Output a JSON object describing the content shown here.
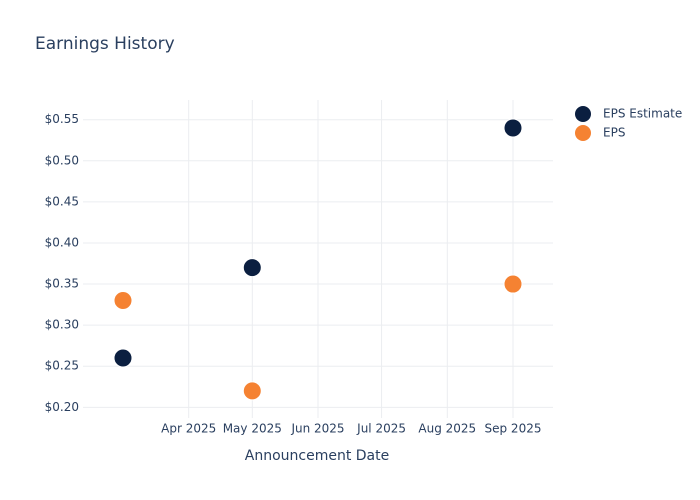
{
  "chart_data": {
    "type": "scatter",
    "title": "Earnings History",
    "x_label": "Announcement Date",
    "x": [
      "2025-03",
      "2025-05",
      "2025-09"
    ],
    "series": [
      {
        "name": "EPS Estimate",
        "color": "#0b1f40",
        "values": [
          0.26,
          0.37,
          0.54
        ]
      },
      {
        "name": "EPS",
        "color": "#f58232",
        "values": [
          0.33,
          0.22,
          0.35
        ]
      }
    ],
    "xlim": [
      "2025-03",
      "2025-09"
    ],
    "xticks": [
      {
        "value": "2025-04",
        "label": "Apr 2025"
      },
      {
        "value": "2025-05",
        "label": "May 2025"
      },
      {
        "value": "2025-06",
        "label": "Jun 2025"
      },
      {
        "value": "2025-07",
        "label": "Jul 2025"
      },
      {
        "value": "2025-08",
        "label": "Aug 2025"
      },
      {
        "value": "2025-09",
        "label": "Sep 2025"
      }
    ],
    "ylim": [
      0.187,
      0.574
    ],
    "yticks": [
      {
        "value": 0.2,
        "label": "$0.20"
      },
      {
        "value": 0.25,
        "label": "$0.25"
      },
      {
        "value": 0.3,
        "label": "$0.30"
      },
      {
        "value": 0.35,
        "label": "$0.35"
      },
      {
        "value": 0.4,
        "label": "$0.40"
      },
      {
        "value": 0.45,
        "label": "$0.45"
      },
      {
        "value": 0.5,
        "label": "$0.50"
      },
      {
        "value": 0.55,
        "label": "$0.55"
      }
    ],
    "grid": true,
    "legend": "right"
  }
}
